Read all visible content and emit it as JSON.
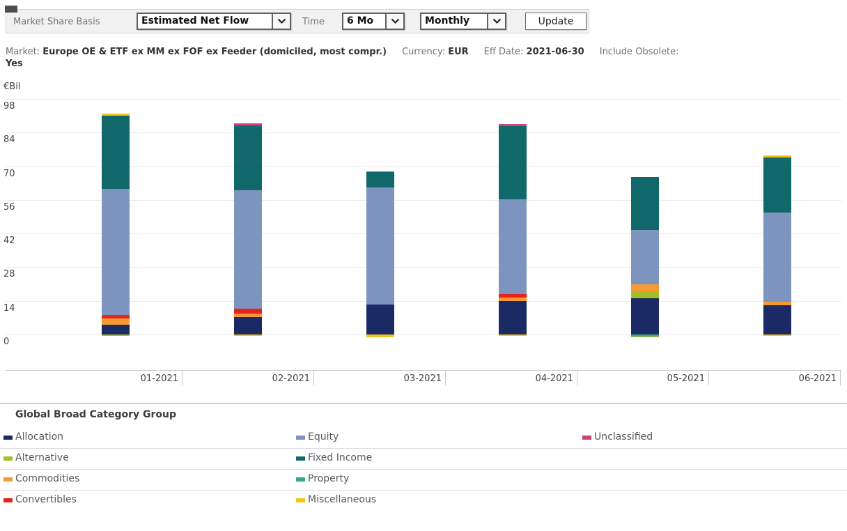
{
  "toolbar": {
    "market_share_basis_label": "Market Share Basis",
    "market_share_basis_value": "Estimated Net Flow",
    "time_label": "Time",
    "time_value": "6 Mo",
    "frequency_value": "Monthly",
    "update_label": "Update"
  },
  "subtitle": {
    "market_label": "Market:",
    "market_value": "Europe OE & ETF ex MM ex FOF ex Feeder (domiciled, most compr.)",
    "currency_label": "Currency:",
    "currency_value": "EUR",
    "effdate_label": "Eff Date:",
    "effdate_value": "2021-06-30",
    "obsolete_label": "Include Obsolete:",
    "obsolete_value": "Yes"
  },
  "chart_data": {
    "type": "bar",
    "stacked": true,
    "title": "",
    "unit_label": "€Bil",
    "ylabel": "€Bil",
    "xlabel": "",
    "yticks": [
      98,
      84,
      70,
      56,
      42,
      28,
      14,
      0
    ],
    "ylim": [
      -2,
      98
    ],
    "grid": true,
    "legend_position": "bottom",
    "categories": [
      "01-2021",
      "02-2021",
      "03-2021",
      "04-2021",
      "05-2021",
      "06-2021"
    ],
    "category_colors": {
      "Allocation": "#1b2a64",
      "Alternative": "#a4be28",
      "Commodities": "#f79a33",
      "Convertibles": "#e8221e",
      "Equity": "#7d95be",
      "Fixed Income": "#11686b",
      "Miscellaneous": "#f2c51b",
      "Property": "#3fa57e",
      "Unclassified": "#d0437a"
    },
    "bars": [
      {
        "month": "01-2021",
        "total": 91.9,
        "segments": [
          {
            "category": "Allocation",
            "value": 4.1
          },
          {
            "category": "Commodities",
            "value": 2.7
          },
          {
            "category": "Convertibles",
            "value": 1.2
          },
          {
            "category": "Equity",
            "value": 52.5
          },
          {
            "category": "Fixed Income",
            "value": 30.4
          },
          {
            "category": "Miscellaneous",
            "value": 1.0
          },
          {
            "category": "Alternative",
            "value": -0.6
          }
        ]
      },
      {
        "month": "02-2021",
        "total": 87.7,
        "segments": [
          {
            "category": "Allocation",
            "value": 7.2
          },
          {
            "category": "Commodities",
            "value": 1.4
          },
          {
            "category": "Convertibles",
            "value": 2.0
          },
          {
            "category": "Equity",
            "value": 49.3
          },
          {
            "category": "Fixed Income",
            "value": 27.0
          },
          {
            "category": "Unclassified",
            "value": 0.8
          },
          {
            "category": "Miscellaneous",
            "value": -0.5
          }
        ]
      },
      {
        "month": "03-2021",
        "total": 67.9,
        "segments": [
          {
            "category": "Allocation",
            "value": 12.6
          },
          {
            "category": "Equity",
            "value": 48.5
          },
          {
            "category": "Fixed Income",
            "value": 6.3
          },
          {
            "category": "Unclassified",
            "value": 0.5
          },
          {
            "category": "Miscellaneous",
            "value": -1.2
          }
        ]
      },
      {
        "month": "04-2021",
        "total": 87.5,
        "segments": [
          {
            "category": "Allocation",
            "value": 14.0
          },
          {
            "category": "Commodities",
            "value": 1.4
          },
          {
            "category": "Convertibles",
            "value": 1.4
          },
          {
            "category": "Equity",
            "value": 39.4
          },
          {
            "category": "Fixed Income",
            "value": 30.6
          },
          {
            "category": "Unclassified",
            "value": 0.7
          },
          {
            "category": "Miscellaneous",
            "value": -0.5
          }
        ]
      },
      {
        "month": "05-2021",
        "total": 65.5,
        "segments": [
          {
            "category": "Allocation",
            "value": 15.0
          },
          {
            "category": "Alternative",
            "value": 2.9
          },
          {
            "category": "Commodities",
            "value": 2.9
          },
          {
            "category": "Equity",
            "value": 22.7
          },
          {
            "category": "Fixed Income",
            "value": 22.0
          },
          {
            "category": "Property",
            "value": -0.8
          },
          {
            "category": "Miscellaneous",
            "value": -0.5
          }
        ]
      },
      {
        "month": "06-2021",
        "total": 74.6,
        "segments": [
          {
            "category": "Allocation",
            "value": 12.2
          },
          {
            "category": "Commodities",
            "value": 1.4
          },
          {
            "category": "Equity",
            "value": 37.0
          },
          {
            "category": "Fixed Income",
            "value": 23.0
          },
          {
            "category": "Miscellaneous",
            "value": 1.0
          },
          {
            "category": "Miscellaneous",
            "value": -0.7
          }
        ]
      }
    ],
    "legend_title": "Global Broad Category Group",
    "legend_rows": [
      [
        "Allocation",
        "Equity",
        "Unclassified"
      ],
      [
        "Alternative",
        "Fixed Income"
      ],
      [
        "Commodities",
        "Property"
      ],
      [
        "Convertibles",
        "Miscellaneous"
      ]
    ]
  }
}
